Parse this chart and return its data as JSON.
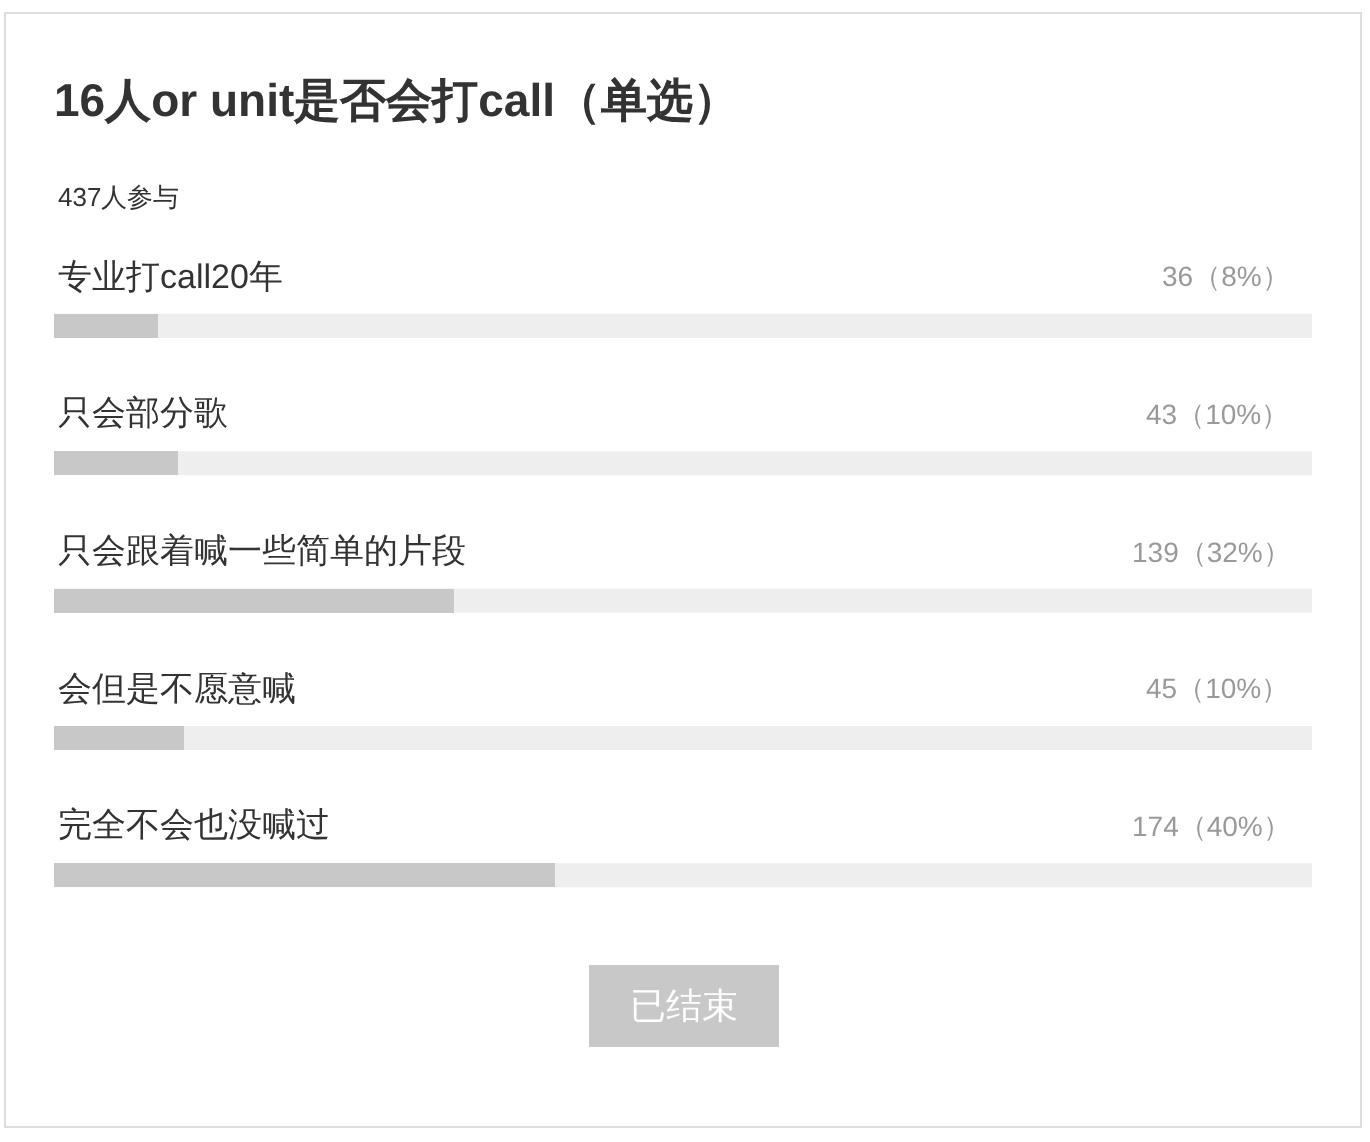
{
  "chart_data": {
    "type": "bar",
    "orientation": "horizontal",
    "title": "16人or unit是否会打call（单选）",
    "subtitle": "437人参与",
    "categories": [
      "专业打call20年",
      "只会部分歌",
      "只会跟着喊一些简单的片段",
      "会但是不愿意喊",
      "完全不会也没喊过"
    ],
    "values": [
      36,
      43,
      139,
      45,
      174
    ],
    "value_labels": [
      "36（8%）",
      "43（10%）",
      "139（32%）",
      "45（10%）",
      "174（40%）"
    ],
    "xlim": [
      0,
      437
    ],
    "color": "#c8c8c8",
    "grid": false,
    "legend": false,
    "annotations": [
      "已结束"
    ]
  }
}
